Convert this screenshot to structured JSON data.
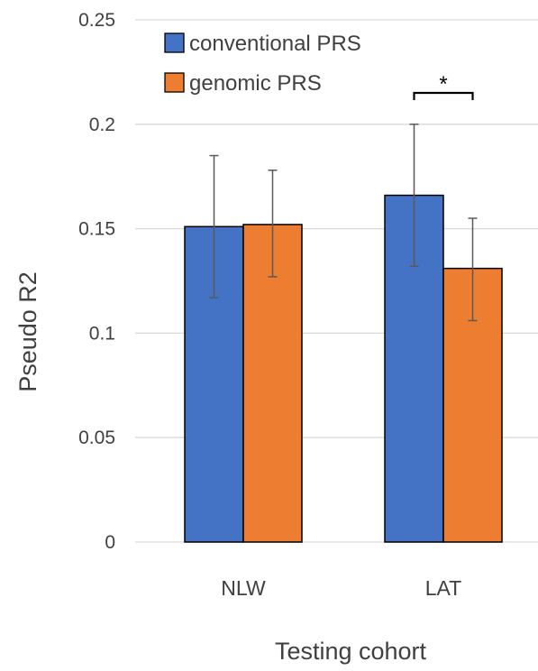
{
  "chart_data": {
    "type": "bar",
    "categories": [
      "NLW",
      "LAT"
    ],
    "series": [
      {
        "name": "conventional PRS",
        "color": "#4472C4",
        "values": [
          0.151,
          0.166
        ],
        "error_low": [
          0.117,
          0.132
        ],
        "error_high": [
          0.185,
          0.2
        ]
      },
      {
        "name": "genomic PRS",
        "color": "#ED7D31",
        "values": [
          0.152,
          0.131
        ],
        "error_low": [
          0.127,
          0.106
        ],
        "error_high": [
          0.178,
          0.155
        ]
      }
    ],
    "xlabel": "Testing cohort",
    "ylabel": "Pseudo R2",
    "ylim": [
      0,
      0.25
    ],
    "yticks": [
      "0",
      "0.05",
      "0.1",
      "0.15",
      "0.2",
      "0.25"
    ],
    "grid": true,
    "legend_position": "top-left",
    "annotations": [
      {
        "text": "*",
        "category": "LAT",
        "between_series": [
          0,
          1
        ]
      }
    ]
  }
}
